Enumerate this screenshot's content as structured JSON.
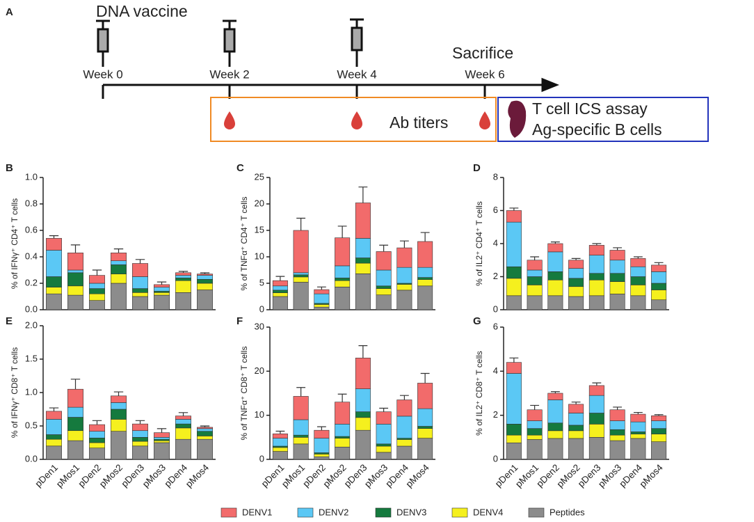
{
  "diagram": {
    "panel": "A",
    "title": "DNA vaccine",
    "weeks": [
      "Week 0",
      "Week 2",
      "Week 4",
      "Week 6"
    ],
    "sacrifice": "Sacrifice",
    "ab_titers": "Ab titers",
    "assays": [
      "T cell ICS assay",
      "Ag-specific B cells"
    ]
  },
  "chart_data": [
    {
      "type": "bar",
      "stacked": true,
      "panel": "B",
      "ylabel": "% of IFNγ⁺ CD4⁺ T cells",
      "ylim": [
        0,
        1
      ],
      "yticks": [
        {
          "value": 0,
          "label": "0.0"
        },
        0.2,
        0.4,
        0.6,
        0.8,
        {
          "value": 1,
          "label": "1.0"
        }
      ],
      "series": [
        {
          "name": "DENV1",
          "color": "#f26b6b",
          "values": [
            0.09,
            0.13,
            0.06,
            0.06,
            0.1,
            0.02,
            0.02,
            0.01
          ],
          "errors": [
            0.02,
            0.06,
            0.04,
            0.03,
            0.03,
            0.02,
            0.01,
            0.01
          ]
        },
        {
          "name": "DENV2",
          "color": "#5bc8f5",
          "values": [
            0.2,
            0.02,
            0.04,
            0.03,
            0.09,
            0.03,
            0.02,
            0.03
          ],
          "errors": [
            0.04,
            0.02,
            0.02,
            0.02,
            0.02,
            0.01,
            0.01,
            0.01
          ]
        },
        {
          "name": "DENV3",
          "color": "#157a3e",
          "values": [
            0.08,
            0.1,
            0.04,
            0.07,
            0.03,
            0.01,
            0.02,
            0.03
          ],
          "errors": [
            0.03,
            0.05,
            0.02,
            0.03,
            0.02,
            0.01,
            0.02,
            0.02
          ]
        },
        {
          "name": "DENV4",
          "color": "#f5f01e",
          "values": [
            0.05,
            0.07,
            0.05,
            0.07,
            0.03,
            0.02,
            0.09,
            0.05
          ],
          "errors": [
            0.02,
            0.05,
            0.03,
            0.04,
            0.02,
            0.01,
            0.04,
            0.02
          ]
        },
        {
          "name": "Peptides",
          "color": "#8c8c8c",
          "values": [
            0.12,
            0.11,
            0.07,
            0.2,
            0.1,
            0.11,
            0.13,
            0.15
          ],
          "errors": [
            0.01,
            0.01,
            0.01,
            0.01,
            0.01,
            0.01,
            0.01,
            0.01
          ]
        }
      ]
    },
    {
      "type": "bar",
      "stacked": true,
      "panel": "C",
      "ylabel": "% of TNFα⁺ CD4⁺ T cells",
      "ylim": [
        0,
        25
      ],
      "yticks": [
        0,
        5,
        10,
        15,
        20,
        25
      ],
      "series": [
        {
          "name": "DENV1",
          "color": "#f26b6b",
          "values": [
            1.0,
            8.0,
            0.8,
            5.3,
            6.7,
            3.5,
            3.7,
            4.9
          ],
          "errors": [
            0.8,
            2.3,
            0.5,
            2.2,
            3.0,
            1.2,
            1.3,
            1.7
          ]
        },
        {
          "name": "DENV2",
          "color": "#5bc8f5",
          "values": [
            0.8,
            0.4,
            1.8,
            2.3,
            3.7,
            3.0,
            3.0,
            1.9
          ],
          "errors": [
            0.5,
            0.4,
            0.5,
            0.8,
            1.3,
            0.6,
            0.8,
            0.7
          ]
        },
        {
          "name": "DENV3",
          "color": "#157a3e",
          "values": [
            0.5,
            0.4,
            0.2,
            0.5,
            1.0,
            0.5,
            0.2,
            0.4
          ],
          "errors": [
            0.3,
            0.3,
            0.2,
            0.4,
            0.6,
            0.3,
            0.3,
            0.3
          ]
        },
        {
          "name": "DENV4",
          "color": "#f5f01e",
          "values": [
            0.7,
            1.0,
            0.5,
            1.2,
            2.0,
            1.2,
            1.1,
            1.2
          ],
          "errors": [
            0.4,
            0.5,
            0.2,
            0.6,
            1.0,
            0.5,
            0.5,
            0.5
          ]
        },
        {
          "name": "Peptides",
          "color": "#8c8c8c",
          "values": [
            2.5,
            5.2,
            0.5,
            4.3,
            6.8,
            2.8,
            3.7,
            4.5
          ],
          "errors": [
            0.3,
            0.4,
            0.2,
            0.4,
            0.6,
            0.3,
            0.4,
            0.4
          ]
        }
      ]
    },
    {
      "type": "bar",
      "stacked": true,
      "panel": "D",
      "ylabel": "% of IL2⁺ CD4⁺ T cells",
      "ylim": [
        0,
        8
      ],
      "yticks": [
        0,
        2,
        4,
        6,
        8
      ],
      "series": [
        {
          "name": "DENV1",
          "color": "#f26b6b",
          "values": [
            0.7,
            0.6,
            0.5,
            0.5,
            0.6,
            0.6,
            0.5,
            0.4
          ],
          "errors": [
            0.15,
            0.2,
            0.1,
            0.1,
            0.1,
            0.15,
            0.1,
            0.15
          ]
        },
        {
          "name": "DENV2",
          "color": "#5bc8f5",
          "values": [
            2.7,
            0.4,
            1.2,
            0.6,
            1.1,
            0.8,
            0.6,
            0.7
          ],
          "errors": [
            0.15,
            0.15,
            0.15,
            0.15,
            0.15,
            0.15,
            0.15,
            0.15
          ]
        },
        {
          "name": "DENV3",
          "color": "#157a3e",
          "values": [
            0.7,
            0.5,
            0.5,
            0.5,
            0.4,
            0.5,
            0.5,
            0.4
          ],
          "errors": [
            0.1,
            0.2,
            0.15,
            0.15,
            0.15,
            0.1,
            0.1,
            0.1
          ]
        },
        {
          "name": "DENV4",
          "color": "#f5f01e",
          "values": [
            1.05,
            0.65,
            0.95,
            0.6,
            0.95,
            0.75,
            0.65,
            0.6
          ],
          "errors": [
            0.1,
            0.2,
            0.15,
            0.15,
            0.15,
            0.15,
            0.15,
            0.15
          ]
        },
        {
          "name": "Peptides",
          "color": "#8c8c8c",
          "values": [
            0.85,
            0.85,
            0.85,
            0.8,
            0.85,
            0.95,
            0.85,
            0.6
          ],
          "errors": [
            0.1,
            0.1,
            0.1,
            0.1,
            0.1,
            0.1,
            0.1,
            0.1
          ]
        }
      ]
    },
    {
      "type": "bar",
      "stacked": true,
      "panel": "E",
      "ylabel": "% of IFNγ⁺ CD8⁺ T cells",
      "ylim": [
        0,
        2
      ],
      "yticks": [
        {
          "value": 0,
          "label": "0.0"
        },
        0.5,
        {
          "value": 1,
          "label": "1.0"
        },
        1.5,
        {
          "value": 2,
          "label": "2.0"
        }
      ],
      "categories": [
        "pDen1",
        "pMos1",
        "pDen2",
        "pMos2",
        "pDen3",
        "pMos3",
        "pDen4",
        "pMos4"
      ],
      "series": [
        {
          "name": "DENV1",
          "color": "#f26b6b",
          "values": [
            0.12,
            0.27,
            0.1,
            0.1,
            0.1,
            0.07,
            0.05,
            0.02
          ],
          "errors": [
            0.05,
            0.15,
            0.06,
            0.06,
            0.05,
            0.06,
            0.05,
            0.02
          ]
        },
        {
          "name": "DENV2",
          "color": "#5bc8f5",
          "values": [
            0.23,
            0.15,
            0.1,
            0.1,
            0.1,
            0.03,
            0.07,
            0.04
          ],
          "errors": [
            0.05,
            0.05,
            0.03,
            0.05,
            0.03,
            0.02,
            0.03,
            0.02
          ]
        },
        {
          "name": "DENV3",
          "color": "#157a3e",
          "values": [
            0.07,
            0.2,
            0.07,
            0.15,
            0.06,
            0.02,
            0.06,
            0.07
          ],
          "errors": [
            0.04,
            0.06,
            0.03,
            0.05,
            0.03,
            0.02,
            0.03,
            0.03
          ]
        },
        {
          "name": "DENV4",
          "color": "#f5f01e",
          "values": [
            0.1,
            0.15,
            0.08,
            0.18,
            0.07,
            0.03,
            0.17,
            0.05
          ],
          "errors": [
            0.03,
            0.06,
            0.03,
            0.05,
            0.02,
            0.02,
            0.05,
            0.02
          ]
        },
        {
          "name": "Peptides",
          "color": "#8c8c8c",
          "values": [
            0.2,
            0.28,
            0.17,
            0.42,
            0.2,
            0.25,
            0.3,
            0.3
          ],
          "errors": [
            0.02,
            0.03,
            0.02,
            0.03,
            0.02,
            0.02,
            0.02,
            0.02
          ]
        }
      ]
    },
    {
      "type": "bar",
      "stacked": true,
      "panel": "F",
      "ylabel": "% of TNFα⁺ CD8⁺ T cells",
      "ylim": [
        0,
        30
      ],
      "yticks": [
        0,
        10,
        20,
        30
      ],
      "categories": [
        "pDen1",
        "pMos1",
        "pDen2",
        "pMos2",
        "pDen3",
        "pMos3",
        "pDen4",
        "pMos4"
      ],
      "series": [
        {
          "name": "DENV1",
          "color": "#f26b6b",
          "values": [
            1.0,
            5.3,
            1.8,
            5.0,
            7.0,
            2.8,
            3.7,
            5.8
          ],
          "errors": [
            0.6,
            2.0,
            0.8,
            1.8,
            2.8,
            0.8,
            1.0,
            2.2
          ]
        },
        {
          "name": "DENV2",
          "color": "#5bc8f5",
          "values": [
            1.8,
            3.5,
            3.3,
            2.8,
            5.2,
            4.5,
            5.0,
            4.0
          ],
          "errors": [
            0.5,
            0.7,
            0.6,
            0.8,
            1.5,
            0.6,
            0.8,
            0.8
          ]
        },
        {
          "name": "DENV3",
          "color": "#157a3e",
          "values": [
            0.3,
            0.5,
            0.3,
            0.4,
            1.3,
            0.5,
            0.3,
            0.5
          ],
          "errors": [
            0.3,
            0.3,
            0.2,
            0.4,
            0.6,
            0.3,
            0.3,
            0.3
          ]
        },
        {
          "name": "DENV4",
          "color": "#f5f01e",
          "values": [
            0.9,
            1.5,
            0.6,
            2.0,
            2.9,
            1.4,
            1.5,
            2.2
          ],
          "errors": [
            0.4,
            0.5,
            0.2,
            0.6,
            1.0,
            0.5,
            0.5,
            0.5
          ]
        },
        {
          "name": "Peptides",
          "color": "#8c8c8c",
          "values": [
            1.8,
            3.5,
            0.6,
            2.8,
            6.6,
            1.6,
            3.0,
            4.8
          ],
          "errors": [
            0.3,
            0.4,
            0.2,
            0.4,
            0.6,
            0.3,
            0.4,
            0.4
          ]
        }
      ]
    },
    {
      "type": "bar",
      "stacked": true,
      "panel": "G",
      "ylabel": "% of IL2⁺ CD8⁺ T cells",
      "ylim": [
        0,
        6
      ],
      "yticks": [
        0,
        2,
        4,
        6
      ],
      "categories": [
        "pDen1",
        "pMos1",
        "pDen2",
        "pMos2",
        "pDen3",
        "pMos3",
        "pDen4",
        "pMos4"
      ],
      "series": [
        {
          "name": "DENV1",
          "color": "#f26b6b",
          "values": [
            0.5,
            0.5,
            0.3,
            0.4,
            0.45,
            0.5,
            0.35,
            0.23
          ],
          "errors": [
            0.2,
            0.2,
            0.07,
            0.1,
            0.12,
            0.12,
            0.08,
            0.05
          ]
        },
        {
          "name": "DENV2",
          "color": "#5bc8f5",
          "values": [
            2.3,
            0.35,
            1.05,
            0.55,
            0.8,
            0.4,
            0.45,
            0.35
          ],
          "errors": [
            0.15,
            0.1,
            0.1,
            0.1,
            0.1,
            0.1,
            0.08,
            0.1
          ]
        },
        {
          "name": "DENV3",
          "color": "#157a3e",
          "values": [
            0.5,
            0.3,
            0.35,
            0.25,
            0.5,
            0.25,
            0.1,
            0.25
          ],
          "errors": [
            0.1,
            0.1,
            0.1,
            0.1,
            0.1,
            0.1,
            0.05,
            0.1
          ]
        },
        {
          "name": "DENV4",
          "color": "#f5f01e",
          "values": [
            0.35,
            0.2,
            0.35,
            0.35,
            0.6,
            0.25,
            0.2,
            0.35
          ],
          "errors": [
            0.1,
            0.08,
            0.1,
            0.08,
            0.1,
            0.08,
            0.05,
            0.1
          ]
        },
        {
          "name": "Peptides",
          "color": "#8c8c8c",
          "values": [
            0.75,
            0.9,
            0.95,
            0.95,
            1.0,
            0.85,
            0.95,
            0.8
          ],
          "errors": [
            0.05,
            0.05,
            0.05,
            0.05,
            0.05,
            0.05,
            0.05,
            0.05
          ]
        }
      ]
    }
  ]
}
